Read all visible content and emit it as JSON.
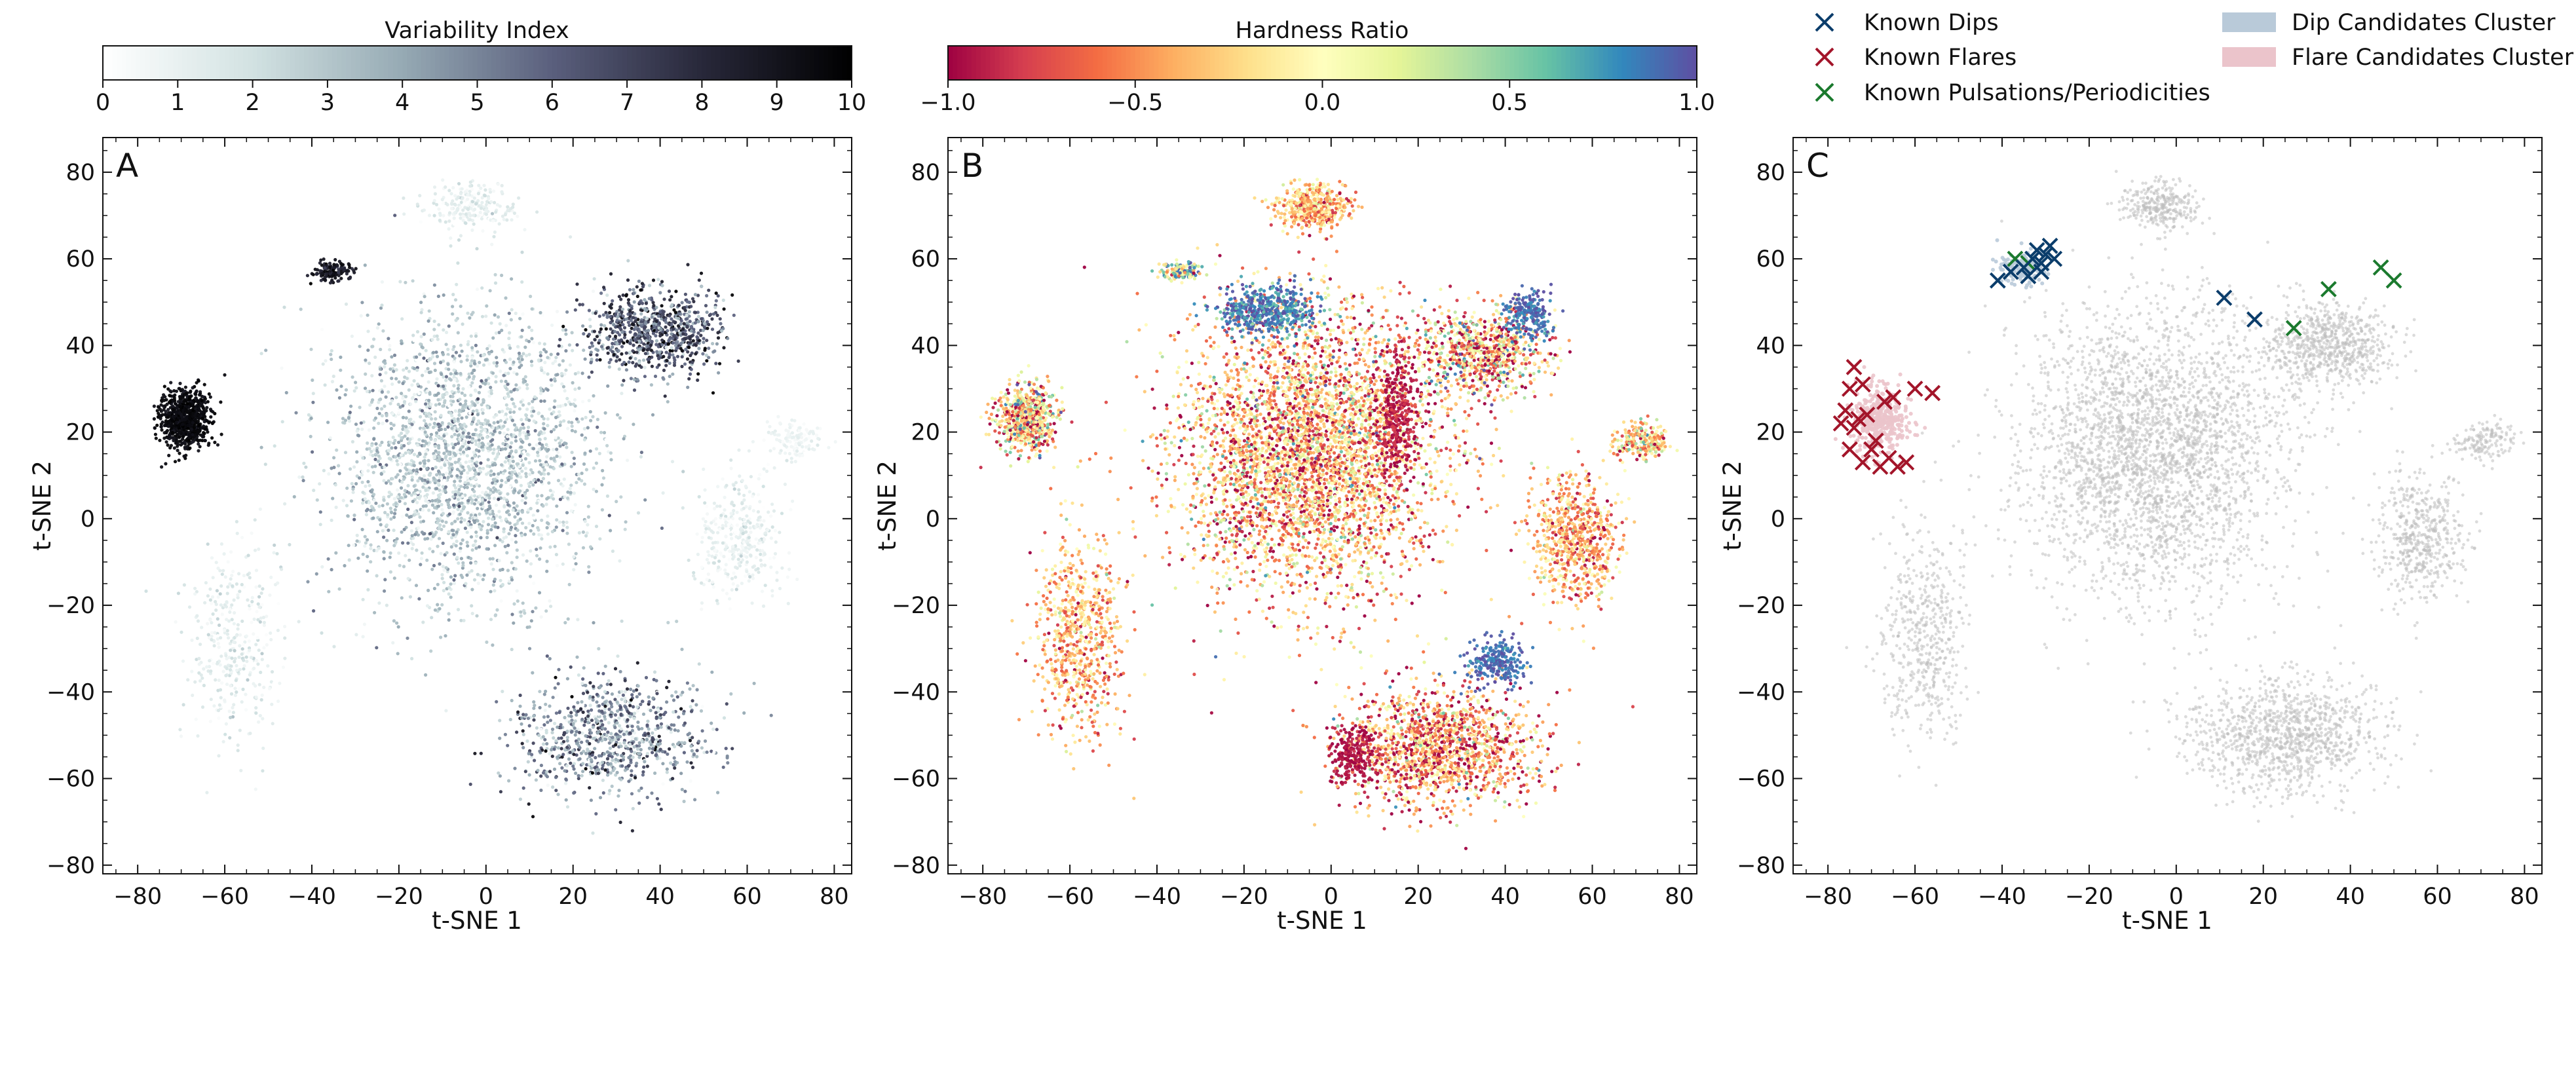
{
  "chart_data": [
    {
      "type": "scatter",
      "panel_label": "A",
      "xlabel": "t-SNE 1",
      "ylabel": "t-SNE 2",
      "xlim": [
        -88,
        84
      ],
      "ylim": [
        -82,
        88
      ],
      "xticks": [
        -80,
        -60,
        -40,
        -20,
        0,
        20,
        40,
        60,
        80
      ],
      "yticks": [
        -80,
        -60,
        -40,
        -20,
        0,
        20,
        40,
        60,
        80
      ],
      "colorbar": {
        "title": "Variability Index",
        "range": [
          0,
          10
        ],
        "ticks": [
          0,
          1,
          2,
          3,
          4,
          5,
          6,
          7,
          8,
          9,
          10
        ],
        "colormap": "bone_r"
      },
      "clusters": [
        {
          "name": "central",
          "center": [
            -5,
            15
          ],
          "spread": [
            28,
            30
          ],
          "n": 2600,
          "value_mean": 2.8,
          "value_sd": 1.4
        },
        {
          "name": "left-dark-blob",
          "center": [
            -69,
            23
          ],
          "spread": [
            5,
            6
          ],
          "n": 800,
          "value_mean": 9.5,
          "value_sd": 0.3
        },
        {
          "name": "upper-right",
          "center": [
            39,
            43
          ],
          "spread": [
            14,
            9
          ],
          "n": 800,
          "value_mean": 6.5,
          "value_sd": 2.0
        },
        {
          "name": "lower-right",
          "center": [
            28,
            -50
          ],
          "spread": [
            20,
            13
          ],
          "n": 900,
          "value_mean": 4.5,
          "value_sd": 2.2
        },
        {
          "name": "top",
          "center": [
            -4,
            72
          ],
          "spread": [
            9,
            5
          ],
          "n": 220,
          "value_mean": 1.2,
          "value_sd": 0.6
        },
        {
          "name": "right-mid",
          "center": [
            58,
            -5
          ],
          "spread": [
            9,
            13
          ],
          "n": 380,
          "value_mean": 1.0,
          "value_sd": 0.6
        },
        {
          "name": "left-lower",
          "center": [
            -58,
            -28
          ],
          "spread": [
            9,
            22
          ],
          "n": 380,
          "value_mean": 1.2,
          "value_sd": 0.7
        },
        {
          "name": "upper-left-streak",
          "center": [
            -35,
            57
          ],
          "spread": [
            4,
            2
          ],
          "n": 140,
          "value_mean": 8.8,
          "value_sd": 0.8
        },
        {
          "name": "right-small",
          "center": [
            71,
            18
          ],
          "spread": [
            6,
            4
          ],
          "n": 120,
          "value_mean": 0.8,
          "value_sd": 0.4
        }
      ]
    },
    {
      "type": "scatter",
      "panel_label": "B",
      "xlabel": "t-SNE 1",
      "ylabel": "t-SNE 2",
      "xlim": [
        -88,
        84
      ],
      "ylim": [
        -82,
        88
      ],
      "xticks": [
        -80,
        -60,
        -40,
        -20,
        0,
        20,
        40,
        60,
        80
      ],
      "yticks": [
        -80,
        -60,
        -40,
        -20,
        0,
        20,
        40,
        60,
        80
      ],
      "colorbar": {
        "title": "Hardness Ratio",
        "range": [
          -1.0,
          1.0
        ],
        "ticks": [
          -1.0,
          -0.5,
          0.0,
          0.5,
          1.0
        ],
        "tick_labels": [
          "−1.0",
          "−0.5",
          "0.0",
          "0.5",
          "1.0"
        ],
        "colormap": "Spectral"
      },
      "clusters": [
        {
          "name": "central",
          "center": [
            -5,
            15
          ],
          "spread": [
            28,
            30
          ],
          "n": 4200,
          "value_mean": -0.35,
          "value_sd": 0.45
        },
        {
          "name": "central-top-blue",
          "center": [
            -15,
            48
          ],
          "spread": [
            10,
            5
          ],
          "n": 500,
          "value_mean": 0.85,
          "value_sd": 0.15
        },
        {
          "name": "central-right-red",
          "center": [
            15,
            25
          ],
          "spread": [
            4,
            14
          ],
          "n": 350,
          "value_mean": -0.9,
          "value_sd": 0.1
        },
        {
          "name": "upper-right",
          "center": [
            35,
            38
          ],
          "spread": [
            13,
            9
          ],
          "n": 800,
          "value_mean": -0.3,
          "value_sd": 0.6
        },
        {
          "name": "upper-right-blue",
          "center": [
            45,
            47
          ],
          "spread": [
            5,
            5
          ],
          "n": 220,
          "value_mean": 0.9,
          "value_sd": 0.1
        },
        {
          "name": "lower-right",
          "center": [
            25,
            -53
          ],
          "spread": [
            20,
            12
          ],
          "n": 1500,
          "value_mean": -0.45,
          "value_sd": 0.45
        },
        {
          "name": "lower-right-blue",
          "center": [
            38,
            -33
          ],
          "spread": [
            6,
            5
          ],
          "n": 250,
          "value_mean": 0.9,
          "value_sd": 0.1
        },
        {
          "name": "lower-left-red",
          "center": [
            5,
            -55
          ],
          "spread": [
            5,
            6
          ],
          "n": 220,
          "value_mean": -0.95,
          "value_sd": 0.05
        },
        {
          "name": "left-blob",
          "center": [
            -70,
            23
          ],
          "spread": [
            6,
            7
          ],
          "n": 700,
          "value_mean": -0.2,
          "value_sd": 0.6
        },
        {
          "name": "left-lower",
          "center": [
            -58,
            -28
          ],
          "spread": [
            9,
            22
          ],
          "n": 700,
          "value_mean": -0.35,
          "value_sd": 0.3
        },
        {
          "name": "top",
          "center": [
            -4,
            72
          ],
          "spread": [
            8,
            5
          ],
          "n": 450,
          "value_mean": -0.3,
          "value_sd": 0.3
        },
        {
          "name": "right-mid",
          "center": [
            56,
            -5
          ],
          "spread": [
            9,
            13
          ],
          "n": 700,
          "value_mean": -0.4,
          "value_sd": 0.3
        },
        {
          "name": "upper-left-streak",
          "center": [
            -35,
            57
          ],
          "spread": [
            4,
            2
          ],
          "n": 150,
          "value_mean": 0.3,
          "value_sd": 0.6
        },
        {
          "name": "right-small",
          "center": [
            71,
            18
          ],
          "spread": [
            6,
            4
          ],
          "n": 220,
          "value_mean": -0.2,
          "value_sd": 0.4
        }
      ]
    },
    {
      "type": "scatter",
      "panel_label": "C",
      "xlabel": "t-SNE 1",
      "ylabel": "t-SNE 2",
      "xlim": [
        -88,
        84
      ],
      "ylim": [
        -82,
        88
      ],
      "xticks": [
        -80,
        -60,
        -40,
        -20,
        0,
        20,
        40,
        60,
        80
      ],
      "yticks": [
        -80,
        -60,
        -40,
        -20,
        0,
        20,
        40,
        60,
        80
      ],
      "legend": [
        {
          "label": "Known Dips",
          "marker": "x",
          "color": "#0b3d6b"
        },
        {
          "label": "Known Flares",
          "marker": "x",
          "color": "#a3152a"
        },
        {
          "label": "Known Pulsations/Periodicities",
          "marker": "x",
          "color": "#1b7a2e"
        },
        {
          "label": "Dip Candidates Cluster",
          "marker": "patch",
          "color": "#b9cad9"
        },
        {
          "label": "Flare Candidates Cluster",
          "marker": "patch",
          "color": "#ebc4cb"
        }
      ],
      "background_color": "#bdbdbd",
      "clusters": [
        {
          "name": "central",
          "center": [
            -5,
            15
          ],
          "spread": [
            28,
            30
          ],
          "n": 3000
        },
        {
          "name": "upper-right",
          "center": [
            35,
            40
          ],
          "spread": [
            13,
            9
          ],
          "n": 700
        },
        {
          "name": "lower-right",
          "center": [
            25,
            -50
          ],
          "spread": [
            20,
            12
          ],
          "n": 1100
        },
        {
          "name": "left-lower",
          "center": [
            -58,
            -28
          ],
          "spread": [
            9,
            22
          ],
          "n": 500
        },
        {
          "name": "top",
          "center": [
            -4,
            72
          ],
          "spread": [
            8,
            5
          ],
          "n": 300
        },
        {
          "name": "right-mid",
          "center": [
            56,
            -5
          ],
          "spread": [
            9,
            13
          ],
          "n": 500
        },
        {
          "name": "right-small",
          "center": [
            71,
            18
          ],
          "spread": [
            6,
            4
          ],
          "n": 150
        }
      ],
      "dip_cluster": {
        "center": [
          -35,
          58
        ],
        "spread": [
          5,
          3
        ],
        "n": 160
      },
      "flare_cluster": {
        "center": [
          -68,
          23
        ],
        "spread": [
          6,
          7
        ],
        "n": 420
      },
      "known_dips": [
        [
          -41,
          55
        ],
        [
          -38,
          57
        ],
        [
          -35,
          58
        ],
        [
          -34,
          56
        ],
        [
          -33,
          60
        ],
        [
          -32,
          62
        ],
        [
          -31,
          59
        ],
        [
          -30,
          61
        ],
        [
          -29,
          63
        ],
        [
          -31,
          57
        ],
        [
          -28,
          60
        ],
        [
          11,
          51
        ],
        [
          18,
          46
        ]
      ],
      "known_flares": [
        [
          -74,
          35
        ],
        [
          -75,
          30
        ],
        [
          -72,
          31
        ],
        [
          -76,
          25
        ],
        [
          -77,
          22
        ],
        [
          -74,
          21
        ],
        [
          -73,
          23
        ],
        [
          -75,
          16
        ],
        [
          -72,
          13
        ],
        [
          -70,
          16
        ],
        [
          -68,
          12
        ],
        [
          -66,
          14
        ],
        [
          -64,
          12
        ],
        [
          -62,
          13
        ],
        [
          -67,
          27
        ],
        [
          -65,
          28
        ],
        [
          -60,
          30
        ],
        [
          -56,
          29
        ],
        [
          -69,
          18
        ],
        [
          -71,
          24
        ]
      ],
      "known_pulsations": [
        [
          -34,
          59
        ],
        [
          -37,
          60
        ],
        [
          27,
          44
        ],
        [
          35,
          53
        ],
        [
          47,
          58
        ],
        [
          50,
          55
        ]
      ]
    }
  ]
}
